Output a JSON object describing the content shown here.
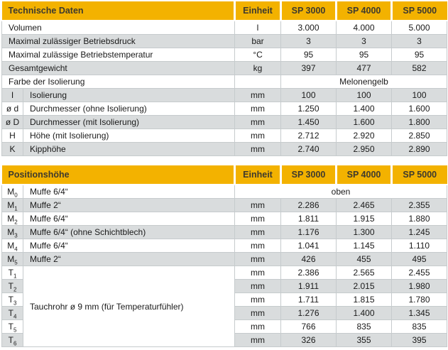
{
  "page": {
    "background": "#ffffff"
  },
  "colors": {
    "header_bg": "#f3b200",
    "header_text": "#3e3a2e",
    "row_alt_bg": "#d9dcdd",
    "row_bg": "#ffffff",
    "border": "#c6cbcd",
    "text": "#1a1a1a"
  },
  "tables": [
    {
      "title": "Technische Daten",
      "unit_header": "Einheit",
      "models": [
        "SP 3000",
        "SP 4000",
        "SP 5000"
      ],
      "rows": [
        {
          "desc": "Volumen",
          "unit": "l",
          "values": [
            "3.000",
            "4.000",
            "5.000"
          ]
        },
        {
          "desc": "Maximal zulässiger Betriebsdruck",
          "unit": "bar",
          "values": [
            "3",
            "3",
            "3"
          ]
        },
        {
          "desc": "Maximal zulässige Betriebstemperatur",
          "unit": "°C",
          "values": [
            "95",
            "95",
            "95"
          ]
        },
        {
          "desc": "Gesamtgewicht",
          "unit": "kg",
          "values": [
            "397",
            "477",
            "582"
          ]
        },
        {
          "desc": "Farbe der Isolierung",
          "unit": "",
          "span_models": "Melonengelb"
        },
        {
          "label": "I",
          "desc": "Isolierung",
          "unit": "mm",
          "values": [
            "100",
            "100",
            "100"
          ]
        },
        {
          "label": "ø d",
          "desc": "Durchmesser (ohne Isolierung)",
          "unit": "mm",
          "values": [
            "1.250",
            "1.400",
            "1.600"
          ]
        },
        {
          "label": "ø D",
          "desc": "Durchmesser (mit Isolierung)",
          "unit": "mm",
          "values": [
            "1.450",
            "1.600",
            "1.800"
          ]
        },
        {
          "label": "H",
          "desc": "Höhe (mit Isolierung)",
          "unit": "mm",
          "values": [
            "2.712",
            "2.920",
            "2.850"
          ]
        },
        {
          "label": "K",
          "desc": "Kipphöhe",
          "unit": "mm",
          "values": [
            "2.740",
            "2.950",
            "2.890"
          ]
        }
      ]
    },
    {
      "title": "Positionshöhe",
      "unit_header": "Einheit",
      "models": [
        "SP 3000",
        "SP 4000",
        "SP 5000"
      ],
      "rows": [
        {
          "label": "M",
          "sub": "0",
          "desc": "Muffe 6/4“",
          "span_all": "oben"
        },
        {
          "label": "M",
          "sub": "1",
          "desc": "Muffe 2“",
          "unit": "mm",
          "values": [
            "2.286",
            "2.465",
            "2.355"
          ]
        },
        {
          "label": "M",
          "sub": "2",
          "desc": "Muffe 6/4“",
          "unit": "mm",
          "values": [
            "1.811",
            "1.915",
            "1.880"
          ]
        },
        {
          "label": "M",
          "sub": "3",
          "desc": "Muffe 6/4“ (ohne Schichtblech)",
          "unit": "mm",
          "values": [
            "1.176",
            "1.300",
            "1.245"
          ]
        },
        {
          "label": "M",
          "sub": "4",
          "desc": "Muffe 6/4“",
          "unit": "mm",
          "values": [
            "1.041",
            "1.145",
            "1.110"
          ]
        },
        {
          "label": "M",
          "sub": "5",
          "desc": "Muffe 2“",
          "unit": "mm",
          "values": [
            "426",
            "455",
            "495"
          ]
        },
        {
          "label": "T",
          "sub": "1",
          "group": {
            "desc": "Tauchrohr ø 9 mm (für Temperaturfühler)",
            "rows": 6
          },
          "unit": "mm",
          "values": [
            "2.386",
            "2.565",
            "2.455"
          ]
        },
        {
          "label": "T",
          "sub": "2",
          "in_group": true,
          "unit": "mm",
          "values": [
            "1.911",
            "2.015",
            "1.980"
          ]
        },
        {
          "label": "T",
          "sub": "3",
          "in_group": true,
          "unit": "mm",
          "values": [
            "1.711",
            "1.815",
            "1.780"
          ]
        },
        {
          "label": "T",
          "sub": "4",
          "in_group": true,
          "unit": "mm",
          "values": [
            "1.276",
            "1.400",
            "1.345"
          ]
        },
        {
          "label": "T",
          "sub": "5",
          "in_group": true,
          "unit": "mm",
          "values": [
            "766",
            "835",
            "835"
          ]
        },
        {
          "label": "T",
          "sub": "6",
          "in_group": true,
          "unit": "mm",
          "values": [
            "326",
            "355",
            "395"
          ]
        }
      ]
    }
  ]
}
